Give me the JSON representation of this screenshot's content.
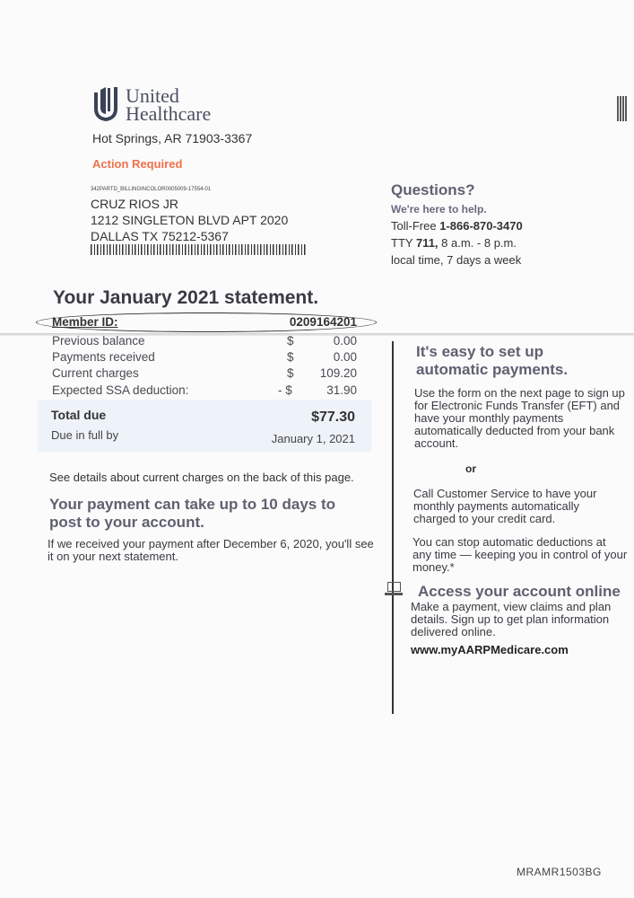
{
  "header": {
    "brand_line1": "United",
    "brand_line2": "Healthcare",
    "sender_address": "Hot Springs, AR 71903-3367",
    "action_required": "Action Required"
  },
  "recipient": {
    "code": "342PARTD_BILLINGINCOLOR0005009-17554-01",
    "name": "CRUZ RIOS JR",
    "street": "1212 SINGLETON BLVD APT 2020",
    "city": "DALLAS TX 75212-5367"
  },
  "questions": {
    "title": "Questions?",
    "subtitle": "We're here to help.",
    "toll_free_label": "Toll-Free",
    "toll_free_number": "1-866-870-3470",
    "tty_label": "TTY",
    "tty_number": "711,",
    "hours": "8 a.m. - 8 p.m.",
    "hours_line2": "local time, 7 days a week"
  },
  "statement": {
    "title": "Your January 2021 statement.",
    "member_id_label": "Member ID:",
    "member_id": "0209164201",
    "rows": [
      {
        "label": "Previous balance",
        "currency": "$",
        "amount": "0.00"
      },
      {
        "label": "Payments received",
        "currency": "$",
        "amount": "0.00"
      },
      {
        "label": "Current charges",
        "currency": "$",
        "amount": "109.20"
      },
      {
        "label": "Expected SSA deduction:",
        "currency": "- $",
        "amount": "31.90"
      }
    ],
    "total_label": "Total due",
    "total_amount": "$77.30",
    "due_label": "Due in full by",
    "due_date": "January 1, 2021",
    "details_note": "See details about current charges on the back of this page.",
    "posting_title": "Your payment can take up to 10 days to post to your account.",
    "posting_note": "If we received your payment after December 6, 2020, you'll see it on your next statement."
  },
  "autopay": {
    "title": "It's easy to set up automatic payments.",
    "eft_text": "Use the form on the next page to sign up for Electronic Funds Transfer (EFT) and have your monthly payments automatically deducted from your bank account.",
    "or": "or",
    "call_text": "Call Customer Service to have your monthly payments automatically charged to your credit card.",
    "stop_text": "You can stop automatic deductions at any time — keeping you in control of your money.*"
  },
  "online": {
    "icon": "laptop-icon",
    "title": "Access your account online",
    "text": "Make a payment, view claims and plan details. Sign up to get plan information delivered online.",
    "url": "www.myAARPMedicare.com"
  },
  "footer_code": "MRAMR1503BG",
  "colors": {
    "action": "#f0704a",
    "heading": "#5f6070",
    "total_box": "#eef2f9"
  }
}
